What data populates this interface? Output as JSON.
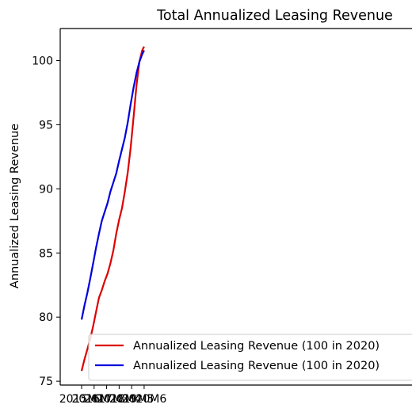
{
  "chart_data": {
    "type": "line",
    "title": "Total Annualized Leasing Revenue",
    "xlabel": "",
    "ylabel": "Annualized Leasing Revenue",
    "x_tick_labels": [
      "2015M1",
      "2016M2",
      "2017M3",
      "2018M4",
      "2019M5",
      "2020M6"
    ],
    "y_ticks": [
      75,
      80,
      85,
      90,
      95,
      100
    ],
    "ylim": [
      74.7,
      102.5
    ],
    "grid": false,
    "legend_position": "lower-right",
    "series": [
      {
        "name": "Annualized Leasing Revenue (100 in 2020)",
        "color": "#dd0000",
        "points": [
          [
            "2015M1",
            75.8
          ],
          [
            "2015M4",
            76.7
          ],
          [
            "2015M7",
            77.5
          ],
          [
            "2015M10",
            78.3
          ],
          [
            "2016M1",
            79.3
          ],
          [
            "2016M4",
            80.4
          ],
          [
            "2016M7",
            81.5
          ],
          [
            "2016M10",
            82.1
          ],
          [
            "2017M1",
            82.8
          ],
          [
            "2017M4",
            83.4
          ],
          [
            "2017M7",
            84.2
          ],
          [
            "2017M10",
            85.2
          ],
          [
            "2018M1",
            86.5
          ],
          [
            "2018M4",
            87.6
          ],
          [
            "2018M7",
            88.5
          ],
          [
            "2018M10",
            89.8
          ],
          [
            "2019M1",
            91.3
          ],
          [
            "2019M4",
            93.2
          ],
          [
            "2019M7",
            95.6
          ],
          [
            "2019M10",
            98.0
          ],
          [
            "2020M1",
            99.9
          ],
          [
            "2020M4",
            100.8
          ],
          [
            "2020M6",
            101.1
          ]
        ]
      },
      {
        "name": "Annualized Leasing Revenue (100 in 2020)",
        "color": "#0000dd",
        "points": [
          [
            "2015M1",
            79.8
          ],
          [
            "2015M4",
            80.9
          ],
          [
            "2015M7",
            81.9
          ],
          [
            "2015M10",
            83.0
          ],
          [
            "2016M1",
            84.2
          ],
          [
            "2016M4",
            85.4
          ],
          [
            "2016M7",
            86.5
          ],
          [
            "2016M10",
            87.5
          ],
          [
            "2017M1",
            88.2
          ],
          [
            "2017M4",
            88.9
          ],
          [
            "2017M7",
            89.8
          ],
          [
            "2017M10",
            90.5
          ],
          [
            "2018M1",
            91.2
          ],
          [
            "2018M4",
            92.2
          ],
          [
            "2018M7",
            93.1
          ],
          [
            "2018M10",
            94.0
          ],
          [
            "2019M1",
            95.2
          ],
          [
            "2019M4",
            96.6
          ],
          [
            "2019M7",
            97.9
          ],
          [
            "2019M10",
            99.0
          ],
          [
            "2020M1",
            99.9
          ],
          [
            "2020M4",
            100.5
          ],
          [
            "2020M6",
            100.8
          ]
        ]
      }
    ]
  }
}
